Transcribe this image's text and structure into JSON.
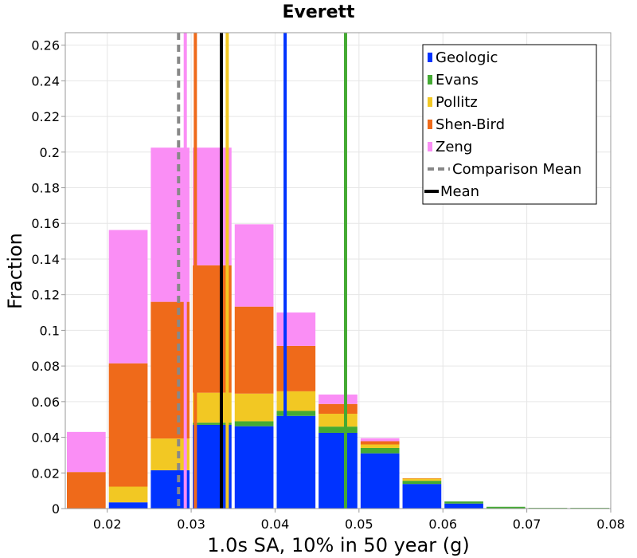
{
  "chart_data": {
    "type": "bar",
    "stacked": true,
    "title": "Everett",
    "xlabel": "1.0s SA, 10% in 50 year (g)",
    "ylabel": "Fraction",
    "xlim": [
      0.015,
      0.08
    ],
    "ylim": [
      0,
      0.267
    ],
    "xticks": [
      0.02,
      0.03,
      0.04,
      0.05,
      0.06,
      0.07,
      0.08
    ],
    "xtick_labels": [
      "0.02",
      "0.03",
      "0.04",
      "0.05",
      "0.06",
      "0.07",
      "0.08"
    ],
    "yticks": [
      0,
      0.02,
      0.04,
      0.06,
      0.08,
      0.1,
      0.12,
      0.14,
      0.16,
      0.18,
      0.2,
      0.22,
      0.24,
      0.26
    ],
    "ytick_labels": [
      "0",
      "0.02",
      "0.04",
      "0.06",
      "0.08",
      "0.1",
      "0.12",
      "0.14",
      "0.16",
      "0.18",
      "0.2",
      "0.22",
      "0.24",
      "0.26"
    ],
    "grid": true,
    "legend_position": "top-right",
    "bin_width": 0.005,
    "bin_centers": [
      0.0175,
      0.0225,
      0.0275,
      0.0325,
      0.0375,
      0.0425,
      0.0475,
      0.0525,
      0.0575,
      0.0625,
      0.0675,
      0.0725,
      0.0775
    ],
    "series": [
      {
        "name": "Geologic",
        "color": "#0033ff",
        "values": [
          0.0,
          0.0035,
          0.0215,
          0.047,
          0.0462,
          0.052,
          0.0425,
          0.031,
          0.0138,
          0.0028,
          0.0,
          0.0,
          0.0
        ]
      },
      {
        "name": "Evans",
        "color": "#44aa33",
        "values": [
          0.0,
          0.0,
          0.0,
          0.0012,
          0.0028,
          0.0028,
          0.0035,
          0.003,
          0.0018,
          0.0012,
          0.001,
          0.0004,
          0.0004
        ]
      },
      {
        "name": "Pollitz",
        "color": "#f2c823",
        "values": [
          0.0,
          0.0088,
          0.0178,
          0.0168,
          0.0155,
          0.011,
          0.0072,
          0.002,
          0.0012,
          0.0,
          0.0,
          0.0,
          0.0
        ]
      },
      {
        "name": "Shen-Bird",
        "color": "#ef6a1a",
        "values": [
          0.0205,
          0.0692,
          0.0767,
          0.0715,
          0.0488,
          0.0255,
          0.0055,
          0.0018,
          0.0002,
          0.0,
          0.0,
          0.0,
          0.0
        ]
      },
      {
        "name": "Zeng",
        "color": "#fa8ef5",
        "values": [
          0.0225,
          0.0748,
          0.0865,
          0.066,
          0.0462,
          0.0187,
          0.0053,
          0.0017,
          0.0,
          0.0,
          0.0,
          0.0,
          0.0
        ]
      }
    ],
    "mean_lines": [
      {
        "series": "Zeng",
        "x": 0.0293,
        "color": "#fa8ef5",
        "style": "solid"
      },
      {
        "series": "Shen-Bird",
        "x": 0.0305,
        "color": "#ef6a1a",
        "style": "solid"
      },
      {
        "series": "Pollitz",
        "x": 0.0343,
        "color": "#f2c823",
        "style": "solid"
      },
      {
        "series": "Geologic",
        "x": 0.0412,
        "color": "#0033ff",
        "style": "solid"
      },
      {
        "series": "Evans",
        "x": 0.0484,
        "color": "#44aa33",
        "style": "solid"
      },
      {
        "series": "Comparison Mean",
        "x": 0.0285,
        "color": "#888888",
        "style": "dashed"
      },
      {
        "series": "Mean",
        "x": 0.0336,
        "color": "#000000",
        "style": "solid"
      }
    ],
    "legend": [
      {
        "label": "Geologic",
        "color": "#0033ff",
        "kind": "swatch"
      },
      {
        "label": "Evans",
        "color": "#44aa33",
        "kind": "swatch"
      },
      {
        "label": "Pollitz",
        "color": "#f2c823",
        "kind": "swatch"
      },
      {
        "label": "Shen-Bird",
        "color": "#ef6a1a",
        "kind": "swatch"
      },
      {
        "label": "Zeng",
        "color": "#fa8ef5",
        "kind": "swatch"
      },
      {
        "label": "Comparison Mean",
        "color": "#888888",
        "kind": "dashed"
      },
      {
        "label": "Mean",
        "color": "#000000",
        "kind": "line"
      }
    ]
  }
}
